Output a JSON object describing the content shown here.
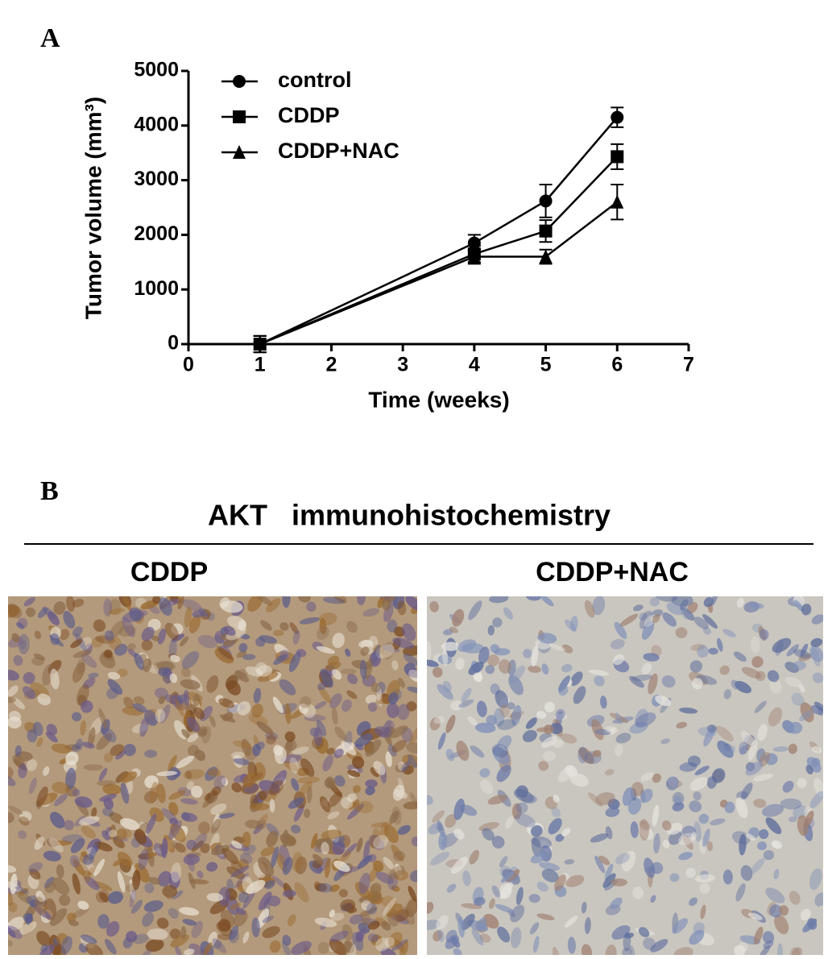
{
  "panel_labels": [
    "A",
    "B"
  ],
  "chart_data": {
    "type": "line",
    "x_label": "Time (weeks)",
    "y_label": "Tumor volume (mm³)",
    "x": [
      1,
      4,
      5,
      6
    ],
    "series": [
      {
        "name": "control",
        "color": "#000000",
        "marker": "circle",
        "values": [
          0,
          1850,
          2620,
          4150
        ],
        "errors": [
          150,
          150,
          300,
          180
        ]
      },
      {
        "name": "CDDP",
        "color": "#000000",
        "marker": "square",
        "values": [
          0,
          1650,
          2070,
          3430
        ],
        "errors": [
          150,
          150,
          200,
          230
        ]
      },
      {
        "name": "CDDP+NAC",
        "color": "#000000",
        "marker": "triangle",
        "values": [
          0,
          1600,
          1600,
          2600
        ],
        "errors": [
          150,
          130,
          130,
          320
        ]
      }
    ],
    "xlim": [
      0,
      7
    ],
    "xticks": [
      0,
      1,
      2,
      3,
      4,
      5,
      6,
      7
    ],
    "ylim": [
      0,
      5000
    ],
    "yticks": [
      0,
      1000,
      2000,
      3000,
      4000,
      5000
    ],
    "legend": "upper left"
  },
  "panel_b": {
    "title": "AKT   immunohistochemistry",
    "images": [
      {
        "caption": "CDDP"
      },
      {
        "caption": "CDDP+NAC"
      }
    ]
  }
}
